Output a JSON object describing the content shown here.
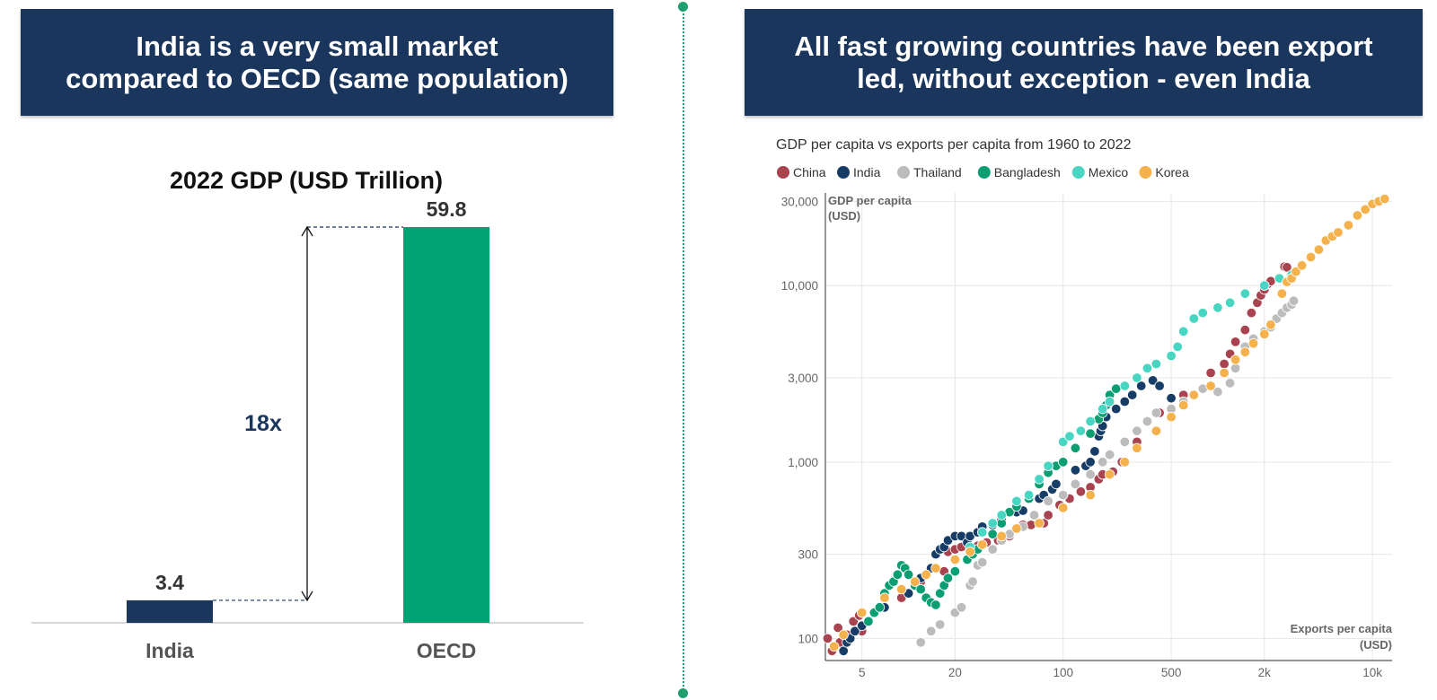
{
  "left": {
    "banner": {
      "line1": "India is a very small market",
      "line2": "compared to OECD (same population)"
    }
  },
  "right": {
    "banner": {
      "line1": "All fast growing countries have been export",
      "line2": "led, without exception - even India"
    }
  },
  "colors": {
    "banner": "#1b365d",
    "india_bar": "#1b365d",
    "oecd_bar": "#00a274",
    "divider": "#1f9e6e"
  },
  "chart_data": [
    {
      "type": "bar",
      "title": "2022 GDP (USD Trillion)",
      "categories": [
        "India",
        "OECD"
      ],
      "values": [
        3.4,
        59.8
      ],
      "value_labels": [
        "3.4",
        "59.8"
      ],
      "colors": [
        "#1b365d",
        "#00a274"
      ],
      "ylim": [
        0,
        59.8
      ],
      "annotation": {
        "text": "18x",
        "color": "#1b365d"
      }
    },
    {
      "type": "scatter",
      "title": "GDP per capita vs exports per capita from 1960 to 2022",
      "xlabel": [
        "Exports per capita",
        "(USD)"
      ],
      "ylabel": [
        "GDP per capita",
        "(USD)"
      ],
      "x_scale": "log",
      "y_scale": "log",
      "xlim": [
        2.9,
        13400
      ],
      "ylim": [
        75,
        33500
      ],
      "x_ticks": [
        {
          "value": 5,
          "label": "5"
        },
        {
          "value": 20,
          "label": "20"
        },
        {
          "value": 100,
          "label": "100"
        },
        {
          "value": 500,
          "label": "500"
        },
        {
          "value": 2000,
          "label": "2k"
        },
        {
          "value": 10000,
          "label": "10k"
        }
      ],
      "y_ticks": [
        {
          "value": 100,
          "label": "100"
        },
        {
          "value": 300,
          "label": "300"
        },
        {
          "value": 1000,
          "label": "1,000"
        },
        {
          "value": 3000,
          "label": "3,000"
        },
        {
          "value": 10000,
          "label": "10,000"
        },
        {
          "value": 30000,
          "label": "30,000"
        }
      ],
      "grid": true,
      "legend_position": "top-left",
      "series": [
        {
          "name": "China",
          "color": "#a8434f",
          "points": [
            [
              3,
              100
            ],
            [
              3.2,
              85
            ],
            [
              3.5,
              115
            ],
            [
              3.6,
              95
            ],
            [
              4,
              105
            ],
            [
              4.4,
              125
            ],
            [
              5,
              110
            ],
            [
              4.8,
              135
            ],
            [
              9,
              170
            ],
            [
              12,
              210
            ],
            [
              17,
              240
            ],
            [
              18,
              310
            ],
            [
              20,
              320
            ],
            [
              22,
              330
            ],
            [
              25,
              330
            ],
            [
              28,
              335
            ],
            [
              32,
              350
            ],
            [
              38,
              360
            ],
            [
              45,
              380
            ],
            [
              55,
              440
            ],
            [
              62,
              440
            ],
            [
              75,
              450
            ],
            [
              80,
              500
            ],
            [
              95,
              570
            ],
            [
              110,
              620
            ],
            [
              130,
              680
            ],
            [
              150,
              720
            ],
            [
              170,
              800
            ],
            [
              180,
              850
            ],
            [
              210,
              880
            ],
            [
              240,
              1000
            ],
            [
              300,
              1300
            ],
            [
              420,
              1900
            ],
            [
              600,
              2400
            ],
            [
              900,
              3200
            ],
            [
              1100,
              3600
            ],
            [
              1200,
              4100
            ],
            [
              1300,
              4800
            ],
            [
              1500,
              5600
            ],
            [
              1650,
              7000
            ],
            [
              1800,
              8000
            ],
            [
              1900,
              8800
            ],
            [
              2000,
              9500
            ],
            [
              2100,
              10200
            ],
            [
              2200,
              10600
            ],
            [
              2700,
              12800
            ],
            [
              2800,
              12700
            ]
          ]
        },
        {
          "name": "India",
          "color": "#173d66",
          "points": [
            [
              3.8,
              85
            ],
            [
              4,
              95
            ],
            [
              4.2,
              100
            ],
            [
              4.5,
              110
            ],
            [
              5,
              118
            ],
            [
              7,
              150
            ],
            [
              10,
              180
            ],
            [
              12,
              220
            ],
            [
              14,
              250
            ],
            [
              15,
              300
            ],
            [
              16,
              320
            ],
            [
              17,
              330
            ],
            [
              18,
              360
            ],
            [
              20,
              380
            ],
            [
              22,
              380
            ],
            [
              24,
              350
            ],
            [
              25,
              380
            ],
            [
              28,
              400
            ],
            [
              30,
              430
            ],
            [
              35,
              440
            ],
            [
              40,
              470
            ],
            [
              50,
              520
            ],
            [
              55,
              530
            ],
            [
              70,
              620
            ],
            [
              75,
              650
            ],
            [
              85,
              700
            ],
            [
              90,
              750
            ],
            [
              120,
              900
            ],
            [
              140,
              950
            ],
            [
              150,
              1000
            ],
            [
              160,
              1150
            ],
            [
              170,
              1400
            ],
            [
              175,
              1500
            ],
            [
              180,
              1600
            ],
            [
              190,
              1800
            ],
            [
              220,
              2000
            ],
            [
              250,
              2200
            ],
            [
              280,
              2400
            ],
            [
              320,
              2700
            ],
            [
              380,
              2900
            ],
            [
              420,
              2700
            ],
            [
              500,
              2300
            ]
          ]
        },
        {
          "name": "Thailand",
          "color": "#bcbcbc",
          "points": [
            [
              12,
              95
            ],
            [
              14,
              110
            ],
            [
              16,
              120
            ],
            [
              20,
              140
            ],
            [
              22,
              150
            ],
            [
              25,
              200
            ],
            [
              26,
              210
            ],
            [
              28,
              260
            ],
            [
              30,
              270
            ],
            [
              35,
              320
            ],
            [
              40,
              360
            ],
            [
              45,
              390
            ],
            [
              55,
              430
            ],
            [
              65,
              500
            ],
            [
              80,
              600
            ],
            [
              100,
              650
            ],
            [
              120,
              750
            ],
            [
              150,
              850
            ],
            [
              180,
              1000
            ],
            [
              200,
              1100
            ],
            [
              250,
              1300
            ],
            [
              300,
              1500
            ],
            [
              350,
              1700
            ],
            [
              400,
              1900
            ],
            [
              500,
              2000
            ],
            [
              600,
              2200
            ],
            [
              700,
              2400
            ],
            [
              800,
              2600
            ],
            [
              1000,
              2500
            ],
            [
              1200,
              2800
            ],
            [
              1300,
              3400
            ],
            [
              1500,
              4500
            ],
            [
              1700,
              5000
            ],
            [
              2000,
              5500
            ],
            [
              2200,
              5800
            ],
            [
              2400,
              6500
            ],
            [
              2600,
              7000
            ],
            [
              2800,
              7500
            ],
            [
              3000,
              7800
            ],
            [
              3100,
              8200
            ]
          ]
        },
        {
          "name": "Bangladesh",
          "color": "#0a9e72",
          "points": [
            [
              5.5,
              125
            ],
            [
              6,
              140
            ],
            [
              6.5,
              150
            ],
            [
              7,
              180
            ],
            [
              7.5,
              200
            ],
            [
              8,
              210
            ],
            [
              8.5,
              230
            ],
            [
              9,
              260
            ],
            [
              9.5,
              250
            ],
            [
              10,
              230
            ],
            [
              11,
              200
            ],
            [
              12,
              190
            ],
            [
              13,
              170
            ],
            [
              14,
              160
            ],
            [
              15,
              155
            ],
            [
              16,
              180
            ],
            [
              17,
              200
            ],
            [
              18,
              220
            ],
            [
              20,
              240
            ],
            [
              24,
              280
            ],
            [
              26,
              300
            ],
            [
              28,
              320
            ],
            [
              30,
              340
            ],
            [
              35,
              390
            ],
            [
              40,
              450
            ],
            [
              45,
              520
            ],
            [
              50,
              560
            ],
            [
              60,
              620
            ],
            [
              70,
              750
            ],
            [
              80,
              870
            ],
            [
              90,
              950
            ],
            [
              100,
              1000
            ],
            [
              120,
              1200
            ],
            [
              150,
              1450
            ],
            [
              170,
              1750
            ],
            [
              180,
              1900
            ],
            [
              190,
              2100
            ],
            [
              200,
              2400
            ],
            [
              220,
              2600
            ]
          ]
        },
        {
          "name": "Mexico",
          "color": "#48d6c3",
          "points": [
            [
              20,
              280
            ],
            [
              25,
              330
            ],
            [
              30,
              400
            ],
            [
              35,
              450
            ],
            [
              40,
              500
            ],
            [
              50,
              600
            ],
            [
              60,
              650
            ],
            [
              70,
              800
            ],
            [
              80,
              950
            ],
            [
              100,
              1300
            ],
            [
              110,
              1400
            ],
            [
              130,
              1500
            ],
            [
              150,
              1700
            ],
            [
              180,
              2000
            ],
            [
              200,
              2200
            ],
            [
              250,
              2700
            ],
            [
              300,
              3000
            ],
            [
              350,
              3400
            ],
            [
              400,
              3600
            ],
            [
              500,
              4000
            ],
            [
              550,
              4500
            ],
            [
              600,
              5500
            ],
            [
              700,
              6500
            ],
            [
              800,
              7000
            ],
            [
              1000,
              7500
            ],
            [
              1200,
              8000
            ],
            [
              1500,
              9000
            ],
            [
              2000,
              10000
            ],
            [
              2500,
              11000
            ],
            [
              3000,
              11500
            ]
          ]
        },
        {
          "name": "Korea",
          "color": "#f5b24c",
          "points": [
            [
              3.3,
              90
            ],
            [
              3.8,
              105
            ],
            [
              5,
              140
            ],
            [
              7,
              170
            ],
            [
              9,
              190
            ],
            [
              11,
              210
            ],
            [
              13,
              230
            ],
            [
              15,
              250
            ],
            [
              20,
              280
            ],
            [
              25,
              310
            ],
            [
              30,
              340
            ],
            [
              40,
              380
            ],
            [
              50,
              420
            ],
            [
              70,
              450
            ],
            [
              100,
              550
            ],
            [
              150,
              650
            ],
            [
              200,
              850
            ],
            [
              250,
              1000
            ],
            [
              300,
              1200
            ],
            [
              400,
              1500
            ],
            [
              500,
              1800
            ],
            [
              600,
              2100
            ],
            [
              700,
              2400
            ],
            [
              900,
              2700
            ],
            [
              1100,
              3200
            ],
            [
              1300,
              3800
            ],
            [
              1500,
              4200
            ],
            [
              1700,
              4700
            ],
            [
              2000,
              5300
            ],
            [
              2200,
              6000
            ],
            [
              2600,
              9000
            ],
            [
              2800,
              10500
            ],
            [
              3000,
              11000
            ],
            [
              3200,
              12000
            ],
            [
              3500,
              13000
            ],
            [
              4000,
              14500
            ],
            [
              4500,
              16000
            ],
            [
              5000,
              18000
            ],
            [
              5500,
              19000
            ],
            [
              6000,
              20000
            ],
            [
              7000,
              22000
            ],
            [
              8000,
              25000
            ],
            [
              9000,
              27000
            ],
            [
              10000,
              29000
            ],
            [
              11000,
              30000
            ],
            [
              12000,
              31000
            ]
          ]
        }
      ]
    }
  ]
}
